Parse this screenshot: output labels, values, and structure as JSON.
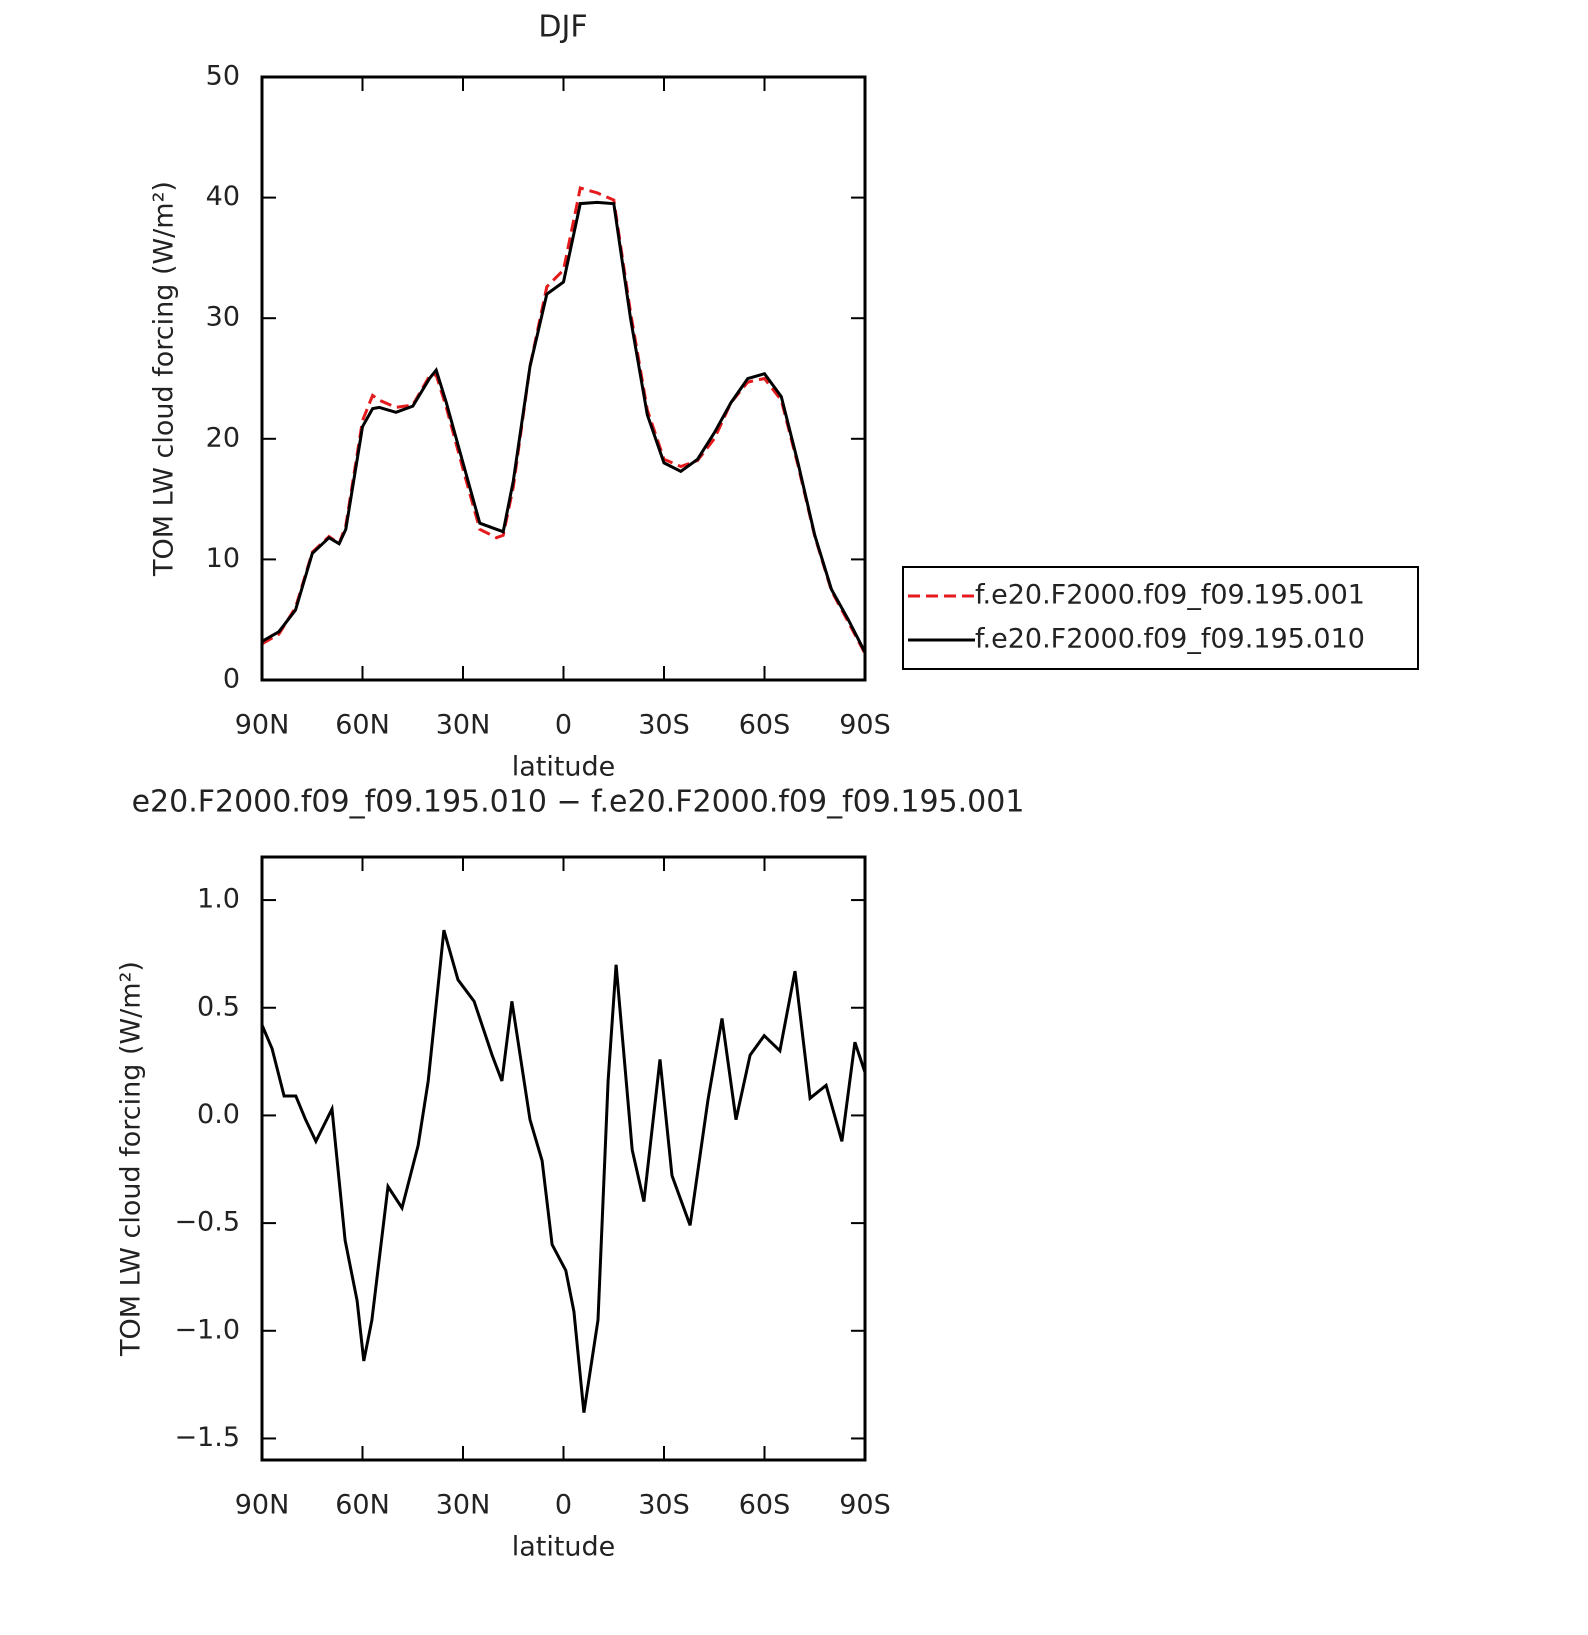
{
  "chart_data": [
    {
      "type": "line",
      "title": "DJF",
      "xlabel": "latitude",
      "ylabel": "TOM LW cloud forcing (W/m²)",
      "x": [
        90,
        85,
        80,
        75,
        70,
        67,
        65,
        60,
        57,
        55,
        50,
        45,
        40,
        38,
        35,
        30,
        25,
        20,
        18,
        15,
        10,
        5,
        0,
        -5,
        -10,
        -15,
        -20,
        -25,
        -30,
        -35,
        -40,
        -45,
        -50,
        -55,
        -60,
        -65,
        -70,
        -75,
        -80,
        -85,
        -90
      ],
      "series": [
        {
          "name": "f.e20.F2000.f09_f09.195.001",
          "color": "#e41a1c",
          "dash": true,
          "values": [
            3.0,
            3.8,
            6.0,
            10.6,
            11.9,
            11.3,
            12.8,
            21.5,
            23.6,
            23.2,
            22.6,
            22.8,
            25.2,
            25.3,
            22.6,
            17.5,
            12.5,
            11.8,
            12.0,
            16.0,
            26.0,
            32.6,
            34.0,
            40.8,
            40.4,
            39.8,
            30.5,
            22.4,
            18.3,
            17.7,
            18.2,
            20.0,
            23.0,
            24.7,
            25.0,
            23.2,
            17.8,
            11.9,
            7.4,
            4.8,
            2.2
          ]
        },
        {
          "name": "f.e20.F2000.f09_f09.195.010",
          "color": "#000000",
          "dash": false,
          "values": [
            3.2,
            4.0,
            5.8,
            10.5,
            11.8,
            11.3,
            12.5,
            21.0,
            22.5,
            22.6,
            22.2,
            22.7,
            25.0,
            25.7,
            23.0,
            18.0,
            13.0,
            12.5,
            12.3,
            16.5,
            26.0,
            32.0,
            33.0,
            39.5,
            39.6,
            39.5,
            30.0,
            22.0,
            18.0,
            17.3,
            18.3,
            20.5,
            23.0,
            25.0,
            25.4,
            23.5,
            18.0,
            12.0,
            7.5,
            5.0,
            2.3
          ]
        }
      ],
      "xlim": [
        90,
        -90
      ],
      "xticks": [
        {
          "value": 90,
          "label": "90N"
        },
        {
          "value": 60,
          "label": "60N"
        },
        {
          "value": 30,
          "label": "30N"
        },
        0,
        {
          "value": -30,
          "label": "30S"
        },
        {
          "value": -60,
          "label": "60S"
        },
        {
          "value": -90,
          "label": "90S"
        }
      ],
      "ylim": [
        0,
        50
      ],
      "yticks": [
        0,
        10,
        20,
        30,
        40,
        50
      ],
      "legend": "right"
    },
    {
      "type": "line",
      "title": "e20.F2000.f09_f09.195.010 − f.e20.F2000.f09_f09.195.001",
      "xlabel": "latitude",
      "ylabel": "TOM LW cloud forcing (W/m²)",
      "x": [
        90,
        87,
        83.4,
        79.9,
        77,
        73.9,
        69.1,
        65.2,
        61.6,
        59.6,
        57.2,
        52.4,
        48.2,
        43.4,
        40.4,
        35.7,
        31.5,
        26.7,
        21.3,
        18.4,
        15.4,
        10,
        6.4,
        3.4,
        -0.7,
        -3.1,
        -6.1,
        -10.3,
        -13.3,
        -15.7,
        -20.5,
        -24,
        -28.8,
        -32.4,
        -37.8,
        -43.1,
        -47.3,
        -51.5,
        -55.7,
        -59.9,
        -64.6,
        -69.1,
        -73.6,
        -78.4,
        -83.1,
        -87,
        -90
      ],
      "series": [
        {
          "color": "#000000",
          "dash": false,
          "values": [
            0.42,
            0.31,
            0.09,
            0.09,
            -0.02,
            -0.12,
            0.03,
            -0.58,
            -0.86,
            -1.14,
            -0.95,
            -0.33,
            -0.43,
            -0.14,
            0.16,
            0.86,
            0.63,
            0.53,
            0.28,
            0.16,
            0.53,
            -0.02,
            -0.21,
            -0.6,
            -0.72,
            -0.91,
            -1.38,
            -0.95,
            0.16,
            0.7,
            -0.16,
            -0.4,
            0.26,
            -0.28,
            -0.51,
            0.07,
            0.45,
            -0.02,
            0.28,
            0.37,
            0.3,
            0.67,
            0.08,
            0.14,
            -0.12,
            0.34,
            0.2
          ]
        }
      ],
      "xlim": [
        90,
        -90
      ],
      "xticks": [
        {
          "value": 90,
          "label": "90N"
        },
        {
          "value": 60,
          "label": "60N"
        },
        {
          "value": 30,
          "label": "30N"
        },
        0,
        {
          "value": -30,
          "label": "30S"
        },
        {
          "value": -60,
          "label": "60S"
        },
        {
          "value": -90,
          "label": "90S"
        }
      ],
      "ylim": [
        -1.6,
        1.2
      ],
      "yticks": [
        {
          "value": -1.5,
          "label": "−1.5"
        },
        {
          "value": -1,
          "label": "−1.0"
        },
        {
          "value": -0.5,
          "label": "−0.5"
        },
        {
          "value": 0,
          "label": "0.0"
        },
        0.5,
        {
          "value": 1,
          "label": "1.0"
        }
      ]
    }
  ]
}
